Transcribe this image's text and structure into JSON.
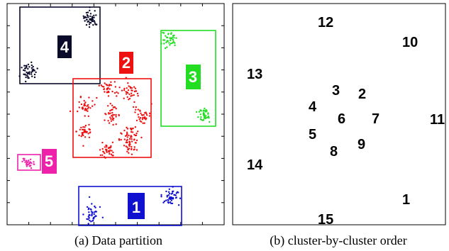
{
  "panels": {
    "left": {
      "caption": "(a) Data partition",
      "partitions": [
        {
          "id": "1",
          "label": "1",
          "color": "#1010d0",
          "label_bg": "#1010d0"
        },
        {
          "id": "2",
          "label": "2",
          "color": "#ee1111",
          "label_bg": "#ee1111"
        },
        {
          "id": "3",
          "label": "3",
          "color": "#22dd22",
          "label_bg": "#22dd22"
        },
        {
          "id": "4",
          "label": "4",
          "color": "#0a0a2a",
          "label_bg": "#0a0a2a"
        },
        {
          "id": "5",
          "label": "5",
          "color": "#ee22aa",
          "label_bg": "#ee22aa"
        }
      ]
    },
    "right": {
      "caption": "(b) cluster-by-cluster order",
      "order_labels": [
        "1",
        "2",
        "3",
        "4",
        "5",
        "6",
        "7",
        "8",
        "9",
        "10",
        "11",
        "12",
        "13",
        "14",
        "15"
      ]
    }
  }
}
